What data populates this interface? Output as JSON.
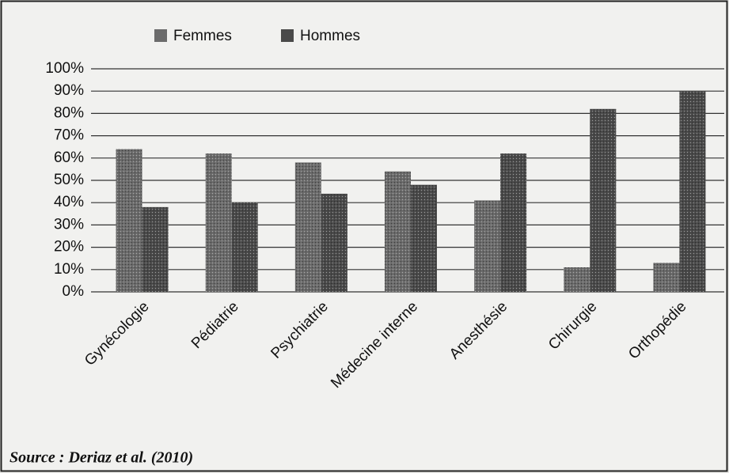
{
  "chart_data": {
    "type": "bar",
    "categories": [
      "Gynécologie",
      "Pédiatrie",
      "Psychiatrie",
      "Médecine interne",
      "Anesthésie",
      "Chirurgie",
      "Orthopédie"
    ],
    "series": [
      {
        "name": "Femmes",
        "color": "#6b6b6b",
        "values": [
          64,
          62,
          58,
          54,
          41,
          11,
          13
        ]
      },
      {
        "name": "Hommes",
        "color": "#4a4a4a",
        "values": [
          38,
          40,
          44,
          48,
          62,
          82,
          90
        ]
      }
    ],
    "ylim": [
      0,
      100
    ],
    "yticks": [
      {
        "value": 0,
        "label": "0%"
      },
      {
        "value": 10,
        "label": "10%"
      },
      {
        "value": 20,
        "label": "20%"
      },
      {
        "value": 30,
        "label": "30%"
      },
      {
        "value": 40,
        "label": "40%"
      },
      {
        "value": 50,
        "label": "50%"
      },
      {
        "value": 60,
        "label": "60%"
      },
      {
        "value": 70,
        "label": "70%"
      },
      {
        "value": 80,
        "label": "80%"
      },
      {
        "value": 90,
        "label": "90%"
      },
      {
        "value": 100,
        "label": "100%"
      }
    ],
    "grid": true,
    "legend": "top",
    "source": "Source : Deriaz et al. (2010)"
  }
}
